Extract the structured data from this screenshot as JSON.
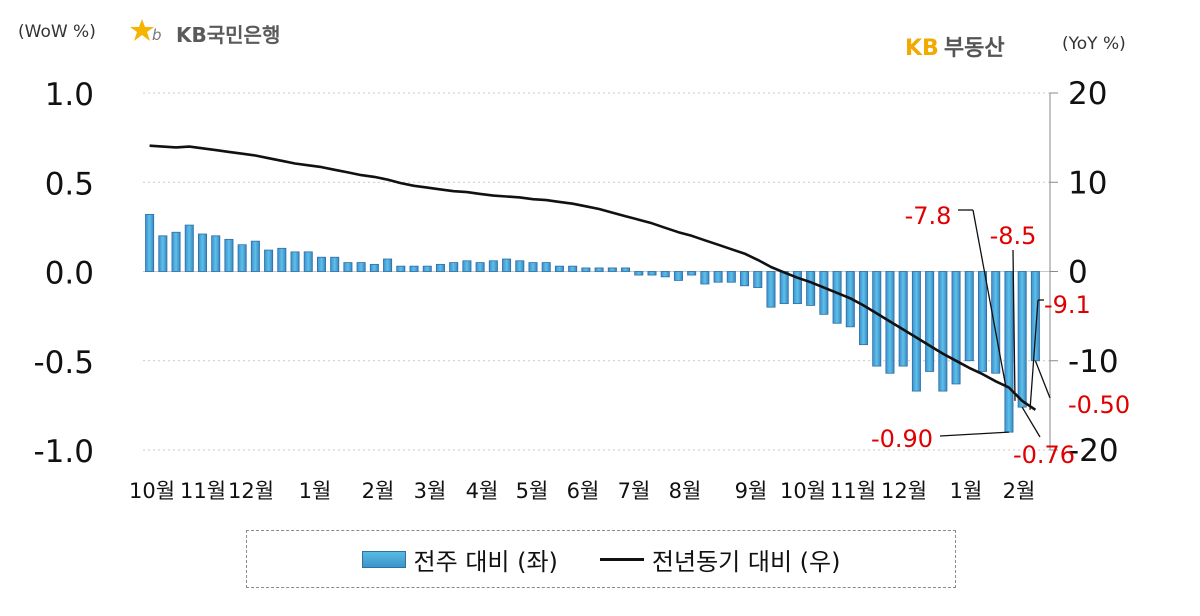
{
  "header": {
    "left_unit": "(WoW %)",
    "bank_name": "KB국민은행",
    "estate_kb": "KB",
    "estate_name": "부동산",
    "right_unit": "(YoY %)"
  },
  "legend": {
    "bar_label": "전주 대비 (좌)",
    "line_label": "전년동기 대비 (우)"
  },
  "chart_data": {
    "type": "bar",
    "x_tick_labels": [
      "10월",
      "11월",
      "12월",
      "1월",
      "2월",
      "3월",
      "4월",
      "5월",
      "6월",
      "7월",
      "8월",
      "9월",
      "10월",
      "11월",
      "12월",
      "1월",
      "2월"
    ],
    "y_left": {
      "ticks": [
        "1.0",
        "0.5",
        "0.0",
        "-0.5",
        "-1.0"
      ],
      "range": [
        -1.0,
        1.0
      ]
    },
    "y_right": {
      "ticks": [
        "20",
        "10",
        "0",
        "-10",
        "-20"
      ],
      "range": [
        -20,
        20
      ]
    },
    "grid": "horizontal dotted",
    "series": [
      {
        "name": "전주 대비 (좌)",
        "axis": "left",
        "type": "bar",
        "values": [
          0.32,
          0.2,
          0.22,
          0.26,
          0.21,
          0.2,
          0.18,
          0.15,
          0.17,
          0.12,
          0.13,
          0.11,
          0.11,
          0.08,
          0.08,
          0.05,
          0.05,
          0.04,
          0.07,
          0.03,
          0.03,
          0.03,
          0.04,
          0.05,
          0.06,
          0.05,
          0.06,
          0.07,
          0.06,
          0.05,
          0.05,
          0.03,
          0.03,
          0.02,
          0.02,
          0.02,
          0.02,
          -0.02,
          -0.02,
          -0.03,
          -0.05,
          -0.02,
          -0.07,
          -0.06,
          -0.06,
          -0.08,
          -0.09,
          -0.2,
          -0.18,
          -0.18,
          -0.19,
          -0.24,
          -0.29,
          -0.31,
          -0.41,
          -0.53,
          -0.57,
          -0.53,
          -0.67,
          -0.56,
          -0.67,
          -0.63,
          -0.5,
          -0.56,
          -0.57,
          -0.9,
          -0.76,
          -0.5
        ]
      },
      {
        "name": "전년동기 대비 (우)",
        "axis": "right",
        "type": "line",
        "color": "#111111",
        "values": [
          14.1,
          14.0,
          13.9,
          14.0,
          13.8,
          13.6,
          13.4,
          13.2,
          13.0,
          12.7,
          12.4,
          12.1,
          11.9,
          11.7,
          11.4,
          11.1,
          10.8,
          10.6,
          10.3,
          9.9,
          9.6,
          9.4,
          9.2,
          9.0,
          8.9,
          8.7,
          8.5,
          8.4,
          8.3,
          8.1,
          8.0,
          7.8,
          7.6,
          7.3,
          7.0,
          6.6,
          6.2,
          5.8,
          5.4,
          4.9,
          4.4,
          4.0,
          3.5,
          3.0,
          2.5,
          2.0,
          1.3,
          0.5,
          -0.1,
          -0.7,
          -1.2,
          -1.8,
          -2.4,
          -3.0,
          -3.8,
          -4.7,
          -5.6,
          -6.5,
          -7.4,
          -8.3,
          -9.2,
          -10.0,
          -10.8,
          -11.5,
          -12.3,
          -13.0,
          -14.5,
          -15.5
        ]
      }
    ],
    "bar_color_top": "#5bc3e6",
    "bar_color_bottom": "#3a85c2",
    "annotations": [
      {
        "text": "-7.8",
        "color": "#e00000"
      },
      {
        "text": "-8.5",
        "color": "#e00000"
      },
      {
        "text": "-9.1",
        "color": "#e00000"
      },
      {
        "text": "-0.50",
        "color": "#e00000"
      },
      {
        "text": "-0.90",
        "color": "#e00000"
      },
      {
        "text": "-0.76",
        "color": "#e00000"
      }
    ]
  }
}
